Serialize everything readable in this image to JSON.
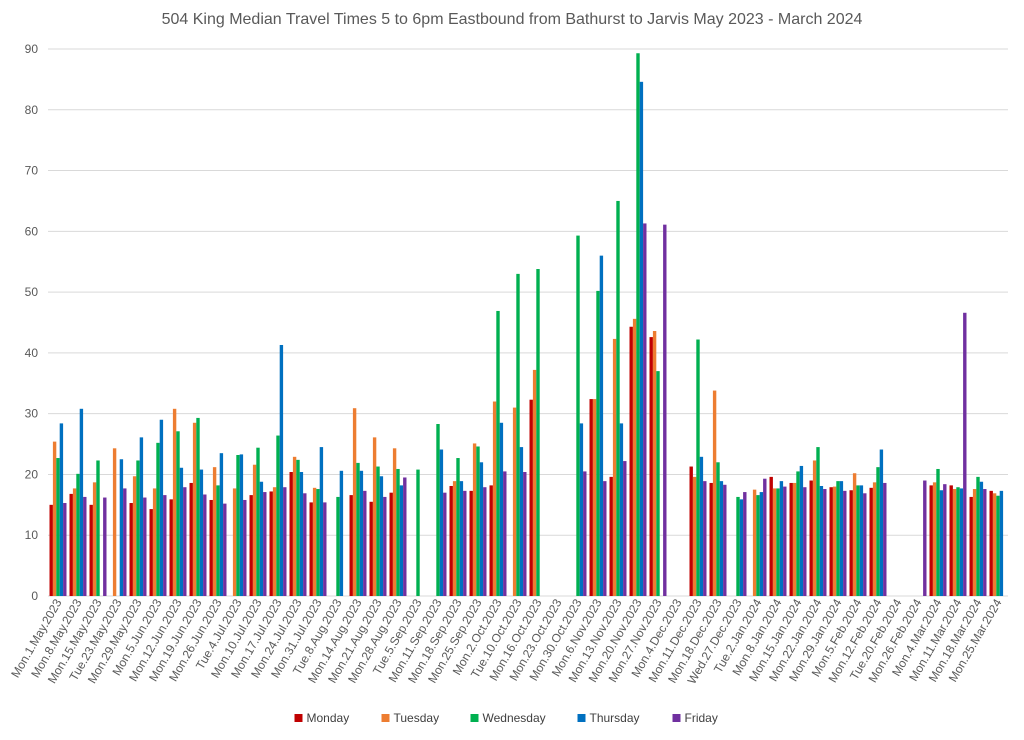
{
  "chart_data": {
    "type": "bar",
    "title": "504 King Median Travel Times 5 to 6pm Eastbound from Bathurst to Jarvis May 2023 - March 2024",
    "xlabel": "",
    "ylabel": "",
    "ylim": [
      0,
      90
    ],
    "yticks": [
      0,
      10,
      20,
      30,
      40,
      50,
      60,
      70,
      80,
      90
    ],
    "grid": true,
    "legend_position": "bottom",
    "categories": [
      "Mon.1.May.2023",
      "Mon.8.May.2023",
      "Mon.15.May.2023",
      "Tue.23.May.2023",
      "Mon.29.May.2023",
      "Mon.5.Jun.2023",
      "Mon.12.Jun.2023",
      "Mon.19.Jun.2023",
      "Mon.26.Jun.2023",
      "Tue.4.Jul.2023",
      "Mon.10.Jul.2023",
      "Mon.17.Jul.2023",
      "Mon.24.Jul.2023",
      "Mon.31.Jul.2023",
      "Tue.8.Aug.2023",
      "Mon.14.Aug.2023",
      "Mon.21.Aug.2023",
      "Mon.28.Aug.2023",
      "Tue.5.Sep.2023",
      "Mon.11.Sep.2023",
      "Mon.18.Sep.2023",
      "Mon.25.Sep.2023",
      "Mon.2.Oct.2023",
      "Tue.10.Oct.2023",
      "Mon.16.Oct.2023",
      "Mon.23.Oct.2023",
      "Mon.30.Oct.2023",
      "Mon.6.Nov.2023",
      "Mon.13.Nov.2023",
      "Mon.20.Nov.2023",
      "Mon.27.Nov.2023",
      "Mon.4.Dec.2023",
      "Mon.11.Dec.2023",
      "Mon.18.Dec.2023",
      "Wed.27.Dec.2023",
      "Tue.2.Jan.2024",
      "Mon.8.Jan.2024",
      "Mon.15.Jan.2024",
      "Mon.22.Jan.2024",
      "Mon.29.Jan.2024",
      "Mon.5.Feb.2024",
      "Mon.12.Feb.2024",
      "Tue.20.Feb.2024",
      "Mon.26.Feb.2024",
      "Mon.4.Mar.2024",
      "Mon.11.Mar.2024",
      "Mon.18.Mar.2024",
      "Mon.25.Mar.2024"
    ],
    "series": [
      {
        "name": "Monday",
        "color": "#c00000",
        "values": [
          15,
          16.8,
          15,
          null,
          15.3,
          14.3,
          15.9,
          18.6,
          15.8,
          null,
          16.6,
          17.2,
          20.4,
          15.4,
          null,
          16.6,
          15.5,
          17,
          null,
          null,
          18.1,
          17.3,
          18.2,
          null,
          32.3,
          null,
          null,
          32.4,
          19.6,
          44.3,
          42.6,
          null,
          21.3,
          18.6,
          null,
          null,
          19.6,
          18.6,
          19,
          17.9,
          17.4,
          17.8,
          null,
          null,
          18.2,
          18.2,
          16.3,
          17.3
        ]
      },
      {
        "name": "Tuesday",
        "color": "#ed7d31",
        "values": [
          25.4,
          17.7,
          18.7,
          24.3,
          19.7,
          17.7,
          30.8,
          28.5,
          21.2,
          17.7,
          21.6,
          17.9,
          22.9,
          17.8,
          null,
          30.9,
          26.1,
          24.3,
          null,
          null,
          18.9,
          25.1,
          32,
          31,
          37.2,
          null,
          null,
          32.4,
          42.3,
          45.6,
          43.6,
          null,
          19.6,
          33.8,
          null,
          17.5,
          17.7,
          18.6,
          22.3,
          18,
          20.2,
          18.7,
          null,
          null,
          18.7,
          17.6,
          17.6,
          16.9
        ]
      },
      {
        "name": "Wednesday",
        "color": "#00b050",
        "values": [
          22.7,
          20.1,
          22.3,
          null,
          22.3,
          25.2,
          27.1,
          29.3,
          18.2,
          23.2,
          24.4,
          26.4,
          22.4,
          17.6,
          16.3,
          21.9,
          21.3,
          20.9,
          20.8,
          28.3,
          22.7,
          24.6,
          46.9,
          53,
          53.8,
          null,
          59.3,
          50.2,
          65,
          89.3,
          37,
          null,
          42.2,
          22,
          16.3,
          16.6,
          17.7,
          20.5,
          24.5,
          18.9,
          18.2,
          21.2,
          null,
          null,
          20.9,
          17.9,
          19.6,
          16.5
        ]
      },
      {
        "name": "Thursday",
        "color": "#0070c0",
        "values": [
          28.4,
          30.8,
          null,
          22.5,
          26.1,
          29,
          21.1,
          20.8,
          23.5,
          23.3,
          18.8,
          41.3,
          20.4,
          24.5,
          20.6,
          20.6,
          19.7,
          18.2,
          null,
          24.1,
          18.9,
          22,
          28.5,
          24.5,
          null,
          null,
          28.4,
          56,
          28.4,
          84.6,
          null,
          null,
          22.9,
          18.9,
          15.9,
          17.1,
          18.9,
          21.4,
          18.1,
          18.9,
          18.2,
          24.1,
          null,
          null,
          17.4,
          17.7,
          18.8,
          17.3
        ]
      },
      {
        "name": "Friday",
        "color": "#7030a0",
        "values": [
          15.3,
          16.3,
          16.2,
          17.7,
          16.2,
          16.6,
          17.9,
          16.7,
          15.2,
          15.8,
          17.1,
          17.9,
          16.9,
          15.4,
          null,
          17.3,
          16.3,
          19.5,
          null,
          17,
          17.3,
          17.9,
          20.5,
          20.4,
          null,
          null,
          20.5,
          18.9,
          22.2,
          61.3,
          61.1,
          null,
          18.9,
          18.3,
          17.1,
          19.3,
          18,
          17.9,
          17.6,
          17.3,
          16.9,
          18.6,
          null,
          19,
          18.4,
          46.6,
          17.6,
          null
        ]
      }
    ]
  }
}
